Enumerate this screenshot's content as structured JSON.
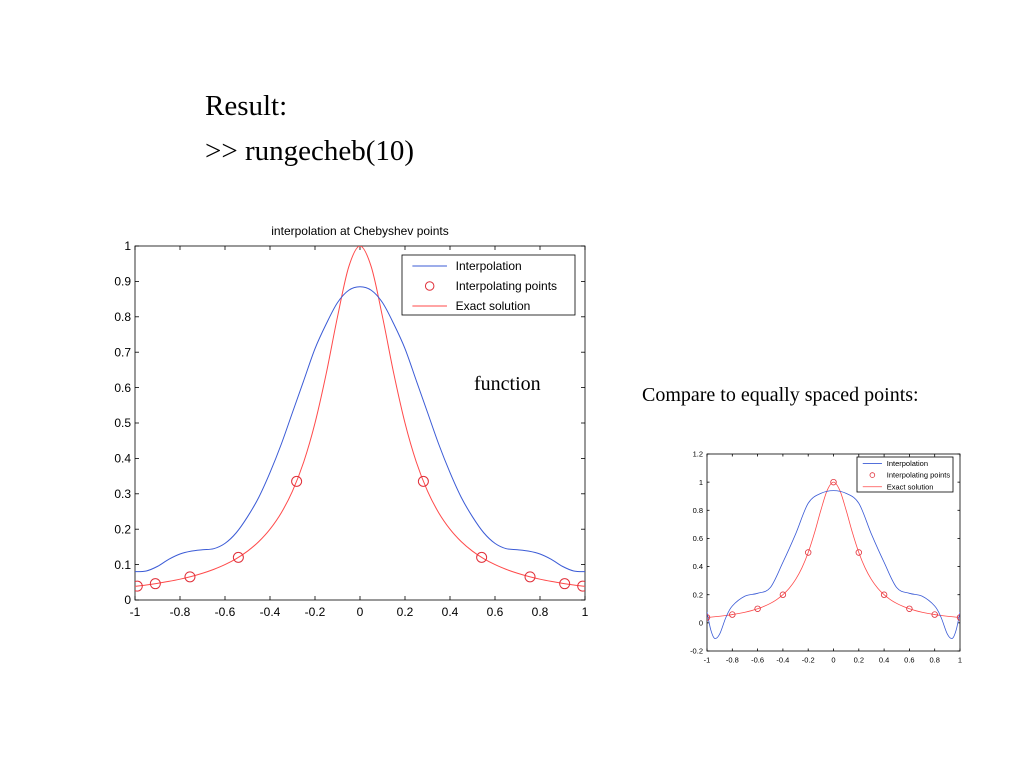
{
  "slide": {
    "heading": "Result:",
    "command": ">> rungecheb(10)",
    "annotation": "function",
    "compare_text": "Compare to equally spaced points:"
  },
  "colors": {
    "interpolation": "#3b5bd6",
    "exact": "#ff4a4a",
    "points": "#e0303a",
    "axis": "#000000"
  },
  "chart_data": [
    {
      "type": "line",
      "title": "interpolation at Chebyshev points",
      "xlabel": "",
      "ylabel": "",
      "xlim": [
        -1,
        1
      ],
      "ylim": [
        0,
        1
      ],
      "x_ticks": [
        -1,
        -0.8,
        -0.6,
        -0.4,
        -0.2,
        0,
        0.2,
        0.4,
        0.6,
        0.8,
        1
      ],
      "x_tick_labels": [
        "-1",
        "-0.8",
        "-0.6",
        "-0.4",
        "-0.2",
        "0",
        "0.2",
        "0.4",
        "0.6",
        "0.8",
        "1"
      ],
      "y_ticks": [
        0,
        0.1,
        0.2,
        0.3,
        0.4,
        0.5,
        0.6,
        0.7,
        0.8,
        0.9,
        1
      ],
      "y_tick_labels": [
        "0",
        "0.1",
        "0.2",
        "0.3",
        "0.4",
        "0.5",
        "0.6",
        "0.7",
        "0.8",
        "0.9",
        "1"
      ],
      "grid": false,
      "legend_position": "top-right",
      "series": [
        {
          "name": "Interpolation",
          "style": "line",
          "color": "#3b5bd6",
          "x": [
            -1,
            -0.95,
            -0.9,
            -0.85,
            -0.8,
            -0.75,
            -0.7,
            -0.65,
            -0.6,
            -0.55,
            -0.5,
            -0.45,
            -0.4,
            -0.35,
            -0.3,
            -0.25,
            -0.2,
            -0.15,
            -0.1,
            -0.05,
            0,
            0.05,
            0.1,
            0.15,
            0.2,
            0.25,
            0.3,
            0.35,
            0.4,
            0.45,
            0.5,
            0.55,
            0.6,
            0.65,
            0.7,
            0.75,
            0.8,
            0.85,
            0.9,
            0.95,
            1
          ],
          "y": [
            0.08,
            0.082,
            0.095,
            0.115,
            0.13,
            0.138,
            0.142,
            0.145,
            0.16,
            0.19,
            0.235,
            0.29,
            0.36,
            0.44,
            0.53,
            0.62,
            0.71,
            0.78,
            0.84,
            0.875,
            0.885,
            0.875,
            0.84,
            0.78,
            0.71,
            0.62,
            0.53,
            0.44,
            0.36,
            0.29,
            0.235,
            0.19,
            0.16,
            0.145,
            0.142,
            0.138,
            0.13,
            0.115,
            0.095,
            0.082,
            0.08
          ]
        },
        {
          "name": "Interpolating points",
          "style": "markers",
          "color": "#e0303a",
          "x": [
            -0.9898,
            -0.9096,
            -0.7557,
            -0.5406,
            -0.2817,
            0.2817,
            0.5406,
            0.7557,
            0.9096,
            0.9898
          ],
          "y": [
            0.0392,
            0.0461,
            0.0654,
            0.1204,
            0.3351,
            0.3351,
            0.1204,
            0.0654,
            0.0461,
            0.0392
          ]
        },
        {
          "name": "Exact solution",
          "style": "line",
          "color": "#ff4a4a",
          "x": [
            -1,
            -0.95,
            -0.9,
            -0.85,
            -0.8,
            -0.75,
            -0.7,
            -0.65,
            -0.6,
            -0.55,
            -0.5,
            -0.45,
            -0.4,
            -0.35,
            -0.3,
            -0.25,
            -0.2,
            -0.15,
            -0.1,
            -0.05,
            0,
            0.05,
            0.1,
            0.15,
            0.2,
            0.25,
            0.3,
            0.35,
            0.4,
            0.45,
            0.5,
            0.55,
            0.6,
            0.65,
            0.7,
            0.75,
            0.8,
            0.85,
            0.9,
            0.95,
            1
          ],
          "y": [
            0.0385,
            0.0424,
            0.0471,
            0.0525,
            0.0588,
            0.0664,
            0.0755,
            0.0865,
            0.1,
            0.1168,
            0.1379,
            0.1649,
            0.2,
            0.2462,
            0.3077,
            0.3902,
            0.5,
            0.64,
            0.8,
            0.9412,
            1,
            0.9412,
            0.8,
            0.64,
            0.5,
            0.3902,
            0.3077,
            0.2462,
            0.2,
            0.1649,
            0.1379,
            0.1168,
            0.1,
            0.0865,
            0.0755,
            0.0664,
            0.0588,
            0.0525,
            0.0471,
            0.0424,
            0.0385
          ]
        }
      ]
    },
    {
      "type": "line",
      "title": "",
      "xlabel": "",
      "ylabel": "",
      "xlim": [
        -1,
        1
      ],
      "ylim": [
        -0.2,
        1.2
      ],
      "x_ticks": [
        -1,
        -0.8,
        -0.6,
        -0.4,
        -0.2,
        0,
        0.2,
        0.4,
        0.6,
        0.8,
        1
      ],
      "x_tick_labels": [
        "-1",
        "-0.8",
        "-0.6",
        "-0.4",
        "-0.2",
        "0",
        "0.2",
        "0.4",
        "0.6",
        "0.8",
        "1"
      ],
      "y_ticks": [
        -0.2,
        0,
        0.2,
        0.4,
        0.6,
        0.8,
        1,
        1.2
      ],
      "y_tick_labels": [
        "-0.2",
        "0",
        "0.2",
        "0.4",
        "0.6",
        "0.8",
        "1",
        "1.2"
      ],
      "grid": false,
      "legend_position": "top-right",
      "series": [
        {
          "name": "Interpolation",
          "style": "line",
          "color": "#3b5bd6",
          "x": [
            -1,
            -0.97,
            -0.94,
            -0.9,
            -0.85,
            -0.8,
            -0.7,
            -0.6,
            -0.5,
            -0.4,
            -0.3,
            -0.2,
            -0.1,
            0,
            0.1,
            0.2,
            0.3,
            0.4,
            0.5,
            0.6,
            0.7,
            0.8,
            0.85,
            0.9,
            0.94,
            0.97,
            1
          ],
          "y": [
            0.077,
            -0.05,
            -0.11,
            -0.08,
            0.04,
            0.12,
            0.19,
            0.21,
            0.25,
            0.43,
            0.63,
            0.85,
            0.92,
            0.94,
            0.92,
            0.85,
            0.63,
            0.43,
            0.25,
            0.21,
            0.19,
            0.12,
            0.04,
            -0.08,
            -0.11,
            -0.05,
            0.077
          ]
        },
        {
          "name": "Interpolating points",
          "style": "markers",
          "color": "#e0303a",
          "x": [
            -1,
            -0.8,
            -0.6,
            -0.4,
            -0.2,
            0,
            0.2,
            0.4,
            0.6,
            0.8,
            1
          ],
          "y": [
            0.0385,
            0.0588,
            0.1,
            0.2,
            0.5,
            1,
            0.5,
            0.2,
            0.1,
            0.0588,
            0.0385
          ]
        },
        {
          "name": "Exact solution",
          "style": "line",
          "color": "#ff4a4a",
          "x": [
            -1,
            -0.95,
            -0.9,
            -0.85,
            -0.8,
            -0.75,
            -0.7,
            -0.65,
            -0.6,
            -0.55,
            -0.5,
            -0.45,
            -0.4,
            -0.35,
            -0.3,
            -0.25,
            -0.2,
            -0.15,
            -0.1,
            -0.05,
            0,
            0.05,
            0.1,
            0.15,
            0.2,
            0.25,
            0.3,
            0.35,
            0.4,
            0.45,
            0.5,
            0.55,
            0.6,
            0.65,
            0.7,
            0.75,
            0.8,
            0.85,
            0.9,
            0.95,
            1
          ],
          "y": [
            0.0385,
            0.0424,
            0.0471,
            0.0525,
            0.0588,
            0.0664,
            0.0755,
            0.0865,
            0.1,
            0.1168,
            0.1379,
            0.1649,
            0.2,
            0.2462,
            0.3077,
            0.3902,
            0.5,
            0.64,
            0.8,
            0.9412,
            1,
            0.9412,
            0.8,
            0.64,
            0.5,
            0.3902,
            0.3077,
            0.2462,
            0.2,
            0.1649,
            0.1379,
            0.1168,
            0.1,
            0.0865,
            0.0755,
            0.0664,
            0.0588,
            0.0525,
            0.0471,
            0.0424,
            0.0385
          ]
        }
      ]
    }
  ]
}
